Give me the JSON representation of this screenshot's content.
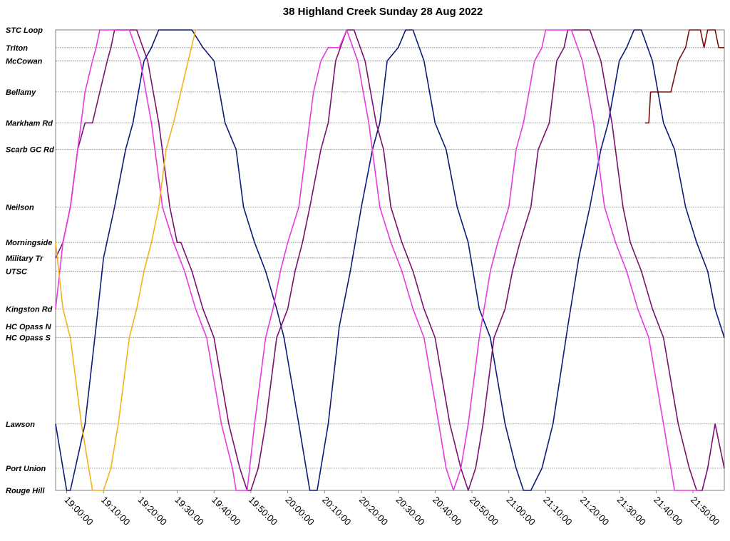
{
  "chart_data": {
    "type": "line",
    "title": "38 Highland Creek Sunday 28 Aug 2022",
    "y_axis": {
      "kind": "stops",
      "labels": [
        "STC Loop",
        "Triton",
        "McCowan",
        "Bellamy",
        "Markham Rd",
        "Scarb GC Rd",
        "Neilson",
        "Morningside",
        "Military Tr",
        "UTSC",
        "Kingston Rd",
        "HC Opass N",
        "HC Opass S",
        "Lawson",
        "Port Union",
        "Rouge Hill"
      ],
      "distance": [
        0,
        0.4,
        0.7,
        1.4,
        2.1,
        2.7,
        4.0,
        4.8,
        5.15,
        5.45,
        6.3,
        6.7,
        6.95,
        8.9,
        9.9,
        10.4
      ]
    },
    "x_axis": {
      "kind": "time",
      "range": [
        "18:57:00",
        "21:58:30"
      ],
      "ticks": [
        "19:00:00",
        "19:10:00",
        "19:20:00",
        "19:30:00",
        "19:40:00",
        "19:50:00",
        "20:00:00",
        "20:10:00",
        "20:20:00",
        "20:30:00",
        "20:40:00",
        "20:50:00",
        "21:00:00",
        "21:10:00",
        "21:20:00",
        "21:30:00",
        "21:40:00",
        "21:50:00"
      ]
    },
    "grid": true,
    "legend": "none",
    "series": [
      {
        "color": "#0d1a7a",
        "points": [
          [
            "18:57:00",
            "Lawson"
          ],
          [
            "19:00:00",
            "Rouge Hill"
          ],
          [
            "19:01:00",
            "Rouge Hill"
          ],
          [
            "19:05:00",
            "Lawson"
          ],
          [
            "19:08:00",
            "HC Opass N"
          ],
          [
            "19:10:00",
            "Military Tr"
          ],
          [
            "19:13:00",
            "Neilson"
          ],
          [
            "19:16:00",
            "Scarb GC Rd"
          ],
          [
            "19:18:00",
            "Markham Rd"
          ],
          [
            "19:21:00",
            "McCowan"
          ],
          [
            "19:23:00",
            "Triton"
          ],
          [
            "19:25:00",
            "STC Loop"
          ],
          [
            "19:34:00",
            "STC Loop"
          ],
          [
            "19:37:00",
            "Triton"
          ],
          [
            "19:40:00",
            "McCowan"
          ],
          [
            "19:43:00",
            "Markham Rd"
          ],
          [
            "19:46:00",
            "Scarb GC Rd"
          ],
          [
            "19:48:00",
            "Neilson"
          ],
          [
            "19:51:00",
            "Morningside"
          ],
          [
            "19:54:00",
            "UTSC"
          ],
          [
            "19:57:00",
            "Kingston Rd"
          ],
          [
            "19:59:00",
            "HC Opass S"
          ],
          [
            "20:03:00",
            "Lawson"
          ],
          [
            "20:06:00",
            "Rouge Hill"
          ],
          [
            "20:08:00",
            "Rouge Hill"
          ],
          [
            "20:11:00",
            "Lawson"
          ],
          [
            "20:14:00",
            "HC Opass N"
          ],
          [
            "20:17:00",
            "UTSC"
          ],
          [
            "20:20:00",
            "Neilson"
          ],
          [
            "20:23:00",
            "Scarb GC Rd"
          ],
          [
            "20:25:00",
            "Markham Rd"
          ],
          [
            "20:27:00",
            "McCowan"
          ],
          [
            "20:30:00",
            "Triton"
          ],
          [
            "20:32:00",
            "STC Loop"
          ],
          [
            "20:34:00",
            "STC Loop"
          ],
          [
            "20:37:00",
            "McCowan"
          ],
          [
            "20:40:00",
            "Markham Rd"
          ],
          [
            "20:43:00",
            "Scarb GC Rd"
          ],
          [
            "20:46:00",
            "Neilson"
          ],
          [
            "20:49:00",
            "Morningside"
          ],
          [
            "20:52:00",
            "Kingston Rd"
          ],
          [
            "20:55:00",
            "HC Opass S"
          ],
          [
            "20:59:00",
            "Lawson"
          ],
          [
            "21:02:00",
            "Port Union"
          ],
          [
            "21:04:00",
            "Rouge Hill"
          ],
          [
            "21:06:00",
            "Rouge Hill"
          ],
          [
            "21:09:00",
            "Port Union"
          ],
          [
            "21:12:00",
            "Lawson"
          ],
          [
            "21:16:00",
            "HC Opass N"
          ],
          [
            "21:19:00",
            "Military Tr"
          ],
          [
            "21:22:00",
            "Neilson"
          ],
          [
            "21:25:00",
            "Scarb GC Rd"
          ],
          [
            "21:27:00",
            "Markham Rd"
          ],
          [
            "21:30:00",
            "McCowan"
          ],
          [
            "21:32:00",
            "Triton"
          ],
          [
            "21:34:00",
            "STC Loop"
          ],
          [
            "21:36:00",
            "STC Loop"
          ],
          [
            "21:39:00",
            "McCowan"
          ],
          [
            "21:42:00",
            "Markham Rd"
          ],
          [
            "21:45:00",
            "Scarb GC Rd"
          ],
          [
            "21:48:00",
            "Neilson"
          ],
          [
            "21:51:00",
            "Morningside"
          ],
          [
            "21:54:00",
            "UTSC"
          ],
          [
            "21:56:00",
            "Kingston Rd"
          ],
          [
            "21:58:30",
            "HC Opass S"
          ]
        ]
      },
      {
        "color": "#7b1070",
        "points": [
          [
            "18:57:00",
            "Military Tr"
          ],
          [
            "18:59:00",
            "Morningside"
          ],
          [
            "19:01:00",
            "Neilson"
          ],
          [
            "19:03:00",
            "Scarb GC Rd"
          ],
          [
            "19:05:00",
            "Markham Rd"
          ],
          [
            "19:07:00",
            "Markham Rd"
          ],
          [
            "19:09:00",
            "Bellamy"
          ],
          [
            "19:11:00",
            "McCowan"
          ],
          [
            "19:12:00",
            "Triton"
          ],
          [
            "19:13:00",
            "STC Loop"
          ],
          [
            "19:19:00",
            "STC Loop"
          ],
          [
            "19:22:00",
            "McCowan"
          ],
          [
            "19:25:00",
            "Markham Rd"
          ],
          [
            "19:28:00",
            "Neilson"
          ],
          [
            "19:30:00",
            "Morningside"
          ],
          [
            "19:31:00",
            "Morningside"
          ],
          [
            "19:34:00",
            "UTSC"
          ],
          [
            "19:37:00",
            "Kingston Rd"
          ],
          [
            "19:40:00",
            "HC Opass S"
          ],
          [
            "19:44:00",
            "Lawson"
          ],
          [
            "19:47:00",
            "Port Union"
          ],
          [
            "19:49:00",
            "Rouge Hill"
          ],
          [
            "19:50:00",
            "Rouge Hill"
          ],
          [
            "19:52:00",
            "Port Union"
          ],
          [
            "19:54:00",
            "Lawson"
          ],
          [
            "19:57:00",
            "HC Opass S"
          ],
          [
            "20:00:00",
            "Kingston Rd"
          ],
          [
            "20:02:00",
            "UTSC"
          ],
          [
            "20:04:00",
            "Morningside"
          ],
          [
            "20:06:00",
            "Neilson"
          ],
          [
            "20:09:00",
            "Scarb GC Rd"
          ],
          [
            "20:11:00",
            "Markham Rd"
          ],
          [
            "20:13:00",
            "McCowan"
          ],
          [
            "20:16:00",
            "STC Loop"
          ],
          [
            "20:18:00",
            "STC Loop"
          ],
          [
            "20:21:00",
            "McCowan"
          ],
          [
            "20:24:00",
            "Markham Rd"
          ],
          [
            "20:26:00",
            "Scarb GC Rd"
          ],
          [
            "20:28:00",
            "Neilson"
          ],
          [
            "20:31:00",
            "Morningside"
          ],
          [
            "20:34:00",
            "UTSC"
          ],
          [
            "20:37:00",
            "Kingston Rd"
          ],
          [
            "20:40:00",
            "HC Opass S"
          ],
          [
            "20:44:00",
            "Lawson"
          ],
          [
            "20:47:00",
            "Port Union"
          ],
          [
            "20:49:00",
            "Rouge Hill"
          ],
          [
            "20:51:00",
            "Port Union"
          ],
          [
            "20:53:00",
            "Lawson"
          ],
          [
            "20:56:00",
            "HC Opass S"
          ],
          [
            "20:59:00",
            "Kingston Rd"
          ],
          [
            "21:01:00",
            "UTSC"
          ],
          [
            "21:03:00",
            "Morningside"
          ],
          [
            "21:06:00",
            "Neilson"
          ],
          [
            "21:08:00",
            "Scarb GC Rd"
          ],
          [
            "21:11:00",
            "Markham Rd"
          ],
          [
            "21:13:00",
            "McCowan"
          ],
          [
            "21:15:00",
            "Triton"
          ],
          [
            "21:16:00",
            "STC Loop"
          ],
          [
            "21:22:00",
            "STC Loop"
          ],
          [
            "21:25:00",
            "McCowan"
          ],
          [
            "21:28:00",
            "Markham Rd"
          ],
          [
            "21:31:00",
            "Neilson"
          ],
          [
            "21:33:00",
            "Morningside"
          ],
          [
            "21:36:00",
            "UTSC"
          ],
          [
            "21:39:00",
            "Kingston Rd"
          ],
          [
            "21:42:00",
            "HC Opass S"
          ],
          [
            "21:46:00",
            "Lawson"
          ],
          [
            "21:49:00",
            "Port Union"
          ],
          [
            "21:51:00",
            "Rouge Hill"
          ],
          [
            "21:52:30",
            "Rouge Hill"
          ],
          [
            "21:54:00",
            "Port Union"
          ],
          [
            "21:56:00",
            "Lawson"
          ],
          [
            "21:58:30",
            "Port Union"
          ]
        ]
      },
      {
        "color": "#e83adf",
        "points": [
          [
            "18:57:00",
            "Kingston Rd"
          ],
          [
            "18:59:00",
            "Morningside"
          ],
          [
            "19:01:00",
            "Neilson"
          ],
          [
            "19:03:00",
            "Scarb GC Rd"
          ],
          [
            "19:05:00",
            "Bellamy"
          ],
          [
            "19:07:00",
            "McCowan"
          ],
          [
            "19:08:00",
            "Triton"
          ],
          [
            "19:09:00",
            "STC Loop"
          ],
          [
            "19:17:00",
            "STC Loop"
          ],
          [
            "19:20:00",
            "McCowan"
          ],
          [
            "19:23:00",
            "Markham Rd"
          ],
          [
            "19:26:00",
            "Neilson"
          ],
          [
            "19:29:00",
            "Morningside"
          ],
          [
            "19:32:00",
            "UTSC"
          ],
          [
            "19:35:00",
            "Kingston Rd"
          ],
          [
            "19:38:00",
            "HC Opass S"
          ],
          [
            "19:42:00",
            "Lawson"
          ],
          [
            "19:45:00",
            "Port Union"
          ],
          [
            "19:46:00",
            "Rouge Hill"
          ],
          [
            "19:49:00",
            "Rouge Hill"
          ],
          [
            "19:51:00",
            "Lawson"
          ],
          [
            "19:54:00",
            "HC Opass S"
          ],
          [
            "19:56:00",
            "Kingston Rd"
          ],
          [
            "19:58:00",
            "UTSC"
          ],
          [
            "20:00:00",
            "Morningside"
          ],
          [
            "20:03:00",
            "Neilson"
          ],
          [
            "20:05:00",
            "Scarb GC Rd"
          ],
          [
            "20:07:00",
            "Bellamy"
          ],
          [
            "20:09:00",
            "McCowan"
          ],
          [
            "20:11:00",
            "Triton"
          ],
          [
            "20:14:00",
            "Triton"
          ],
          [
            "20:16:00",
            "STC Loop"
          ],
          [
            "20:19:00",
            "McCowan"
          ],
          [
            "20:22:00",
            "Markham Rd"
          ],
          [
            "20:25:00",
            "Neilson"
          ],
          [
            "20:28:00",
            "Morningside"
          ],
          [
            "20:31:00",
            "UTSC"
          ],
          [
            "20:34:00",
            "Kingston Rd"
          ],
          [
            "20:37:00",
            "HC Opass S"
          ],
          [
            "20:41:00",
            "Lawson"
          ],
          [
            "20:43:00",
            "Port Union"
          ],
          [
            "20:45:00",
            "Rouge Hill"
          ],
          [
            "20:47:00",
            "Port Union"
          ],
          [
            "20:49:00",
            "Lawson"
          ],
          [
            "20:52:00",
            "HC Opass S"
          ],
          [
            "20:55:00",
            "UTSC"
          ],
          [
            "20:57:00",
            "Morningside"
          ],
          [
            "21:00:00",
            "Neilson"
          ],
          [
            "21:02:00",
            "Scarb GC Rd"
          ],
          [
            "21:04:00",
            "Markham Rd"
          ],
          [
            "21:07:00",
            "McCowan"
          ],
          [
            "21:09:00",
            "Triton"
          ],
          [
            "21:10:00",
            "STC Loop"
          ],
          [
            "21:17:00",
            "STC Loop"
          ],
          [
            "21:20:00",
            "McCowan"
          ],
          [
            "21:23:00",
            "Markham Rd"
          ],
          [
            "21:26:00",
            "Neilson"
          ],
          [
            "21:29:00",
            "Morningside"
          ],
          [
            "21:32:00",
            "UTSC"
          ],
          [
            "21:35:00",
            "Kingston Rd"
          ],
          [
            "21:38:00",
            "HC Opass S"
          ],
          [
            "21:42:00",
            "Lawson"
          ],
          [
            "21:44:00",
            "Port Union"
          ],
          [
            "21:45:00",
            "Rouge Hill"
          ],
          [
            "21:49:00",
            "Rouge Hill"
          ],
          [
            "21:52:00",
            "Rouge Hill"
          ]
        ]
      },
      {
        "color": "#f2b21b",
        "points": [
          [
            "18:57:00",
            "Morningside"
          ],
          [
            "18:59:00",
            "Kingston Rd"
          ],
          [
            "19:01:00",
            "HC Opass S"
          ],
          [
            "19:04:00",
            "Lawson"
          ],
          [
            "19:06:00",
            "Port Union"
          ],
          [
            "19:07:00",
            "Rouge Hill"
          ],
          [
            "19:10:00",
            "Rouge Hill"
          ],
          [
            "19:12:00",
            "Port Union"
          ],
          [
            "19:14:00",
            "Lawson"
          ],
          [
            "19:17:00",
            "HC Opass S"
          ],
          [
            "19:19:00",
            "Kingston Rd"
          ],
          [
            "19:21:00",
            "UTSC"
          ],
          [
            "19:23:00",
            "Morningside"
          ],
          [
            "19:25:00",
            "Neilson"
          ],
          [
            "19:27:00",
            "Scarb GC Rd"
          ],
          [
            "19:29:00",
            "Markham Rd"
          ],
          [
            "19:31:00",
            "Bellamy"
          ],
          [
            "19:33:00",
            "McCowan"
          ],
          [
            "19:35:00",
            "STC Loop"
          ]
        ]
      },
      {
        "color": "#7a1010",
        "points": [
          [
            "21:37:00",
            "Markham Rd"
          ],
          [
            "21:38:00",
            "Markham Rd"
          ],
          [
            "21:38:30",
            "Bellamy"
          ],
          [
            "21:44:00",
            "Bellamy"
          ],
          [
            "21:46:00",
            "McCowan"
          ],
          [
            "21:48:00",
            "Triton"
          ],
          [
            "21:49:00",
            "STC Loop"
          ],
          [
            "21:52:00",
            "STC Loop"
          ],
          [
            "21:53:00",
            "Triton"
          ],
          [
            "21:54:00",
            "STC Loop"
          ],
          [
            "21:56:00",
            "STC Loop"
          ],
          [
            "21:57:00",
            "Triton"
          ],
          [
            "21:58:30",
            "Triton"
          ]
        ]
      }
    ]
  }
}
